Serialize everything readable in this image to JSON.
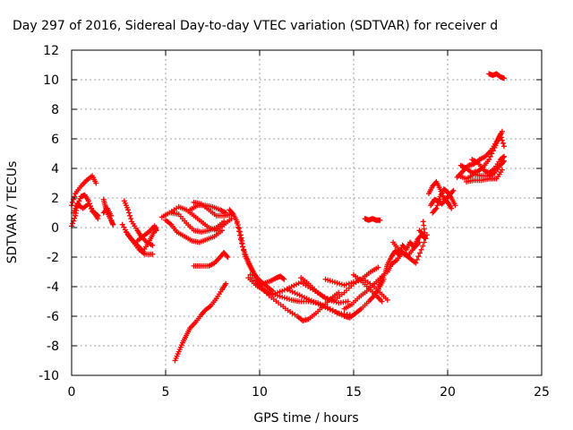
{
  "chart_data": {
    "type": "scatter",
    "title": "Day 297 of 2016, Sidereal Day-to-day VTEC variation (SDTVAR) for receiver d",
    "xlabel": "GPS time / hours",
    "ylabel": "SDTVAR / TECUs",
    "xlim": [
      0,
      25
    ],
    "ylim": [
      -10,
      12
    ],
    "xticks": [
      0,
      5,
      10,
      15,
      20,
      25
    ],
    "yticks": [
      -10,
      -8,
      -6,
      -4,
      -2,
      0,
      2,
      4,
      6,
      8,
      10,
      12
    ],
    "grid": true,
    "marker": "+",
    "color": "#ff0000",
    "traces": [
      [
        [
          0.0,
          1.5
        ],
        [
          0.2,
          2.3
        ],
        [
          0.5,
          2.8
        ],
        [
          0.8,
          3.2
        ],
        [
          1.1,
          3.5
        ],
        [
          1.3,
          3.0
        ]
      ],
      [
        [
          0.0,
          0.1
        ],
        [
          0.2,
          0.8
        ],
        [
          0.3,
          1.5
        ],
        [
          0.5,
          2.1
        ],
        [
          0.7,
          2.2
        ],
        [
          0.9,
          1.8
        ],
        [
          1.1,
          1.1
        ],
        [
          1.3,
          0.9
        ],
        [
          1.4,
          0.8
        ]
      ],
      [
        [
          0.1,
          1.0
        ],
        [
          0.3,
          1.6
        ],
        [
          0.6,
          1.3
        ],
        [
          0.9,
          1.6
        ],
        [
          1.2,
          1.0
        ],
        [
          1.4,
          0.6
        ]
      ],
      [
        [
          1.7,
          1.9
        ],
        [
          1.8,
          1.4
        ],
        [
          1.9,
          1.0
        ],
        [
          2.1,
          0.5
        ],
        [
          2.2,
          0.2
        ]
      ],
      [
        [
          1.7,
          1.0
        ],
        [
          1.9,
          1.3
        ],
        [
          2.1,
          0.8
        ]
      ],
      [
        [
          2.8,
          1.8
        ],
        [
          3.0,
          1.2
        ],
        [
          3.2,
          0.4
        ],
        [
          3.5,
          -0.2
        ],
        [
          3.7,
          -0.6
        ],
        [
          4.0,
          -1.0
        ],
        [
          4.3,
          -1.2
        ]
      ],
      [
        [
          2.7,
          0.2
        ],
        [
          3.0,
          -0.5
        ],
        [
          3.3,
          -1.0
        ],
        [
          3.6,
          -1.5
        ],
        [
          3.9,
          -1.8
        ],
        [
          4.3,
          -1.8
        ]
      ],
      [
        [
          2.9,
          -0.3
        ],
        [
          3.2,
          -0.8
        ],
        [
          3.5,
          -1.2
        ],
        [
          3.8,
          -1.6
        ],
        [
          4.1,
          -1.0
        ],
        [
          4.3,
          -0.5
        ],
        [
          4.5,
          0.0
        ]
      ],
      [
        [
          3.5,
          -0.9
        ],
        [
          3.8,
          -0.6
        ],
        [
          4.1,
          -0.3
        ],
        [
          4.4,
          0.1
        ],
        [
          4.5,
          -0.2
        ]
      ],
      [
        [
          4.8,
          0.7
        ],
        [
          5.2,
          1.0
        ],
        [
          5.7,
          1.4
        ],
        [
          6.1,
          1.2
        ],
        [
          6.5,
          0.8
        ],
        [
          6.9,
          0.4
        ],
        [
          7.3,
          0.0
        ],
        [
          7.7,
          -0.2
        ],
        [
          8.1,
          0.2
        ],
        [
          8.5,
          0.6
        ]
      ],
      [
        [
          5.0,
          0.5
        ],
        [
          5.3,
          0.2
        ],
        [
          5.6,
          -0.3
        ],
        [
          6.0,
          -0.6
        ],
        [
          6.4,
          -0.9
        ],
        [
          6.8,
          -1.0
        ],
        [
          7.2,
          -0.8
        ],
        [
          7.6,
          -0.6
        ],
        [
          8.0,
          -0.2
        ]
      ],
      [
        [
          5.3,
          1.0
        ],
        [
          5.7,
          0.9
        ],
        [
          6.1,
          0.3
        ],
        [
          6.5,
          -0.2
        ],
        [
          6.9,
          -0.3
        ],
        [
          7.3,
          -0.2
        ],
        [
          7.7,
          0.0
        ],
        [
          8.1,
          0.4
        ]
      ],
      [
        [
          6.3,
          1.2
        ],
        [
          6.7,
          1.5
        ],
        [
          7.1,
          1.5
        ],
        [
          7.5,
          1.4
        ],
        [
          7.9,
          1.2
        ],
        [
          8.2,
          1.0
        ]
      ],
      [
        [
          6.5,
          1.7
        ],
        [
          6.9,
          1.6
        ],
        [
          7.3,
          1.2
        ],
        [
          7.7,
          0.8
        ],
        [
          8.1,
          0.8
        ],
        [
          8.5,
          0.9
        ]
      ],
      [
        [
          6.5,
          -2.6
        ],
        [
          6.9,
          -2.6
        ],
        [
          7.3,
          -2.6
        ],
        [
          7.6,
          -2.4
        ],
        [
          7.9,
          -2.0
        ],
        [
          8.1,
          -1.7
        ],
        [
          8.3,
          -2.0
        ]
      ],
      [
        [
          5.5,
          -9.0
        ],
        [
          5.7,
          -8.4
        ],
        [
          5.9,
          -7.8
        ],
        [
          6.1,
          -7.3
        ],
        [
          6.3,
          -6.8
        ],
        [
          6.6,
          -6.4
        ],
        [
          6.9,
          -5.9
        ],
        [
          7.1,
          -5.6
        ],
        [
          7.4,
          -5.3
        ],
        [
          7.7,
          -4.8
        ],
        [
          8.0,
          -4.2
        ],
        [
          8.2,
          -3.8
        ]
      ],
      [
        [
          8.4,
          1.2
        ],
        [
          8.6,
          0.9
        ],
        [
          8.8,
          0.4
        ],
        [
          9.0,
          -0.5
        ],
        [
          9.1,
          -1.3
        ],
        [
          9.3,
          -2.0
        ],
        [
          9.5,
          -2.6
        ],
        [
          9.7,
          -3.1
        ],
        [
          9.9,
          -3.7
        ],
        [
          10.2,
          -4.2
        ],
        [
          10.5,
          -4.5
        ]
      ],
      [
        [
          8.8,
          0.3
        ],
        [
          9.0,
          -0.8
        ],
        [
          9.2,
          -1.8
        ],
        [
          9.4,
          -2.4
        ],
        [
          9.6,
          -2.9
        ],
        [
          9.8,
          -3.3
        ],
        [
          10.1,
          -3.7
        ],
        [
          10.4,
          -4.0
        ],
        [
          10.7,
          -4.3
        ]
      ],
      [
        [
          9.5,
          -3.2
        ],
        [
          9.9,
          -4.0
        ],
        [
          10.3,
          -4.3
        ],
        [
          10.7,
          -4.5
        ],
        [
          11.2,
          -4.7
        ],
        [
          11.7,
          -4.9
        ],
        [
          12.1,
          -5.0
        ],
        [
          12.6,
          -5.0
        ],
        [
          13.1,
          -5.1
        ],
        [
          13.6,
          -5.4
        ],
        [
          14.2,
          -5.8
        ],
        [
          14.8,
          -5.9
        ]
      ],
      [
        [
          9.4,
          -3.4
        ],
        [
          9.8,
          -3.9
        ],
        [
          10.2,
          -3.8
        ],
        [
          10.6,
          -3.6
        ],
        [
          10.9,
          -3.4
        ],
        [
          11.1,
          -3.3
        ],
        [
          11.3,
          -3.5
        ]
      ],
      [
        [
          10.0,
          -4.0
        ],
        [
          10.5,
          -4.6
        ],
        [
          11.0,
          -5.1
        ],
        [
          11.5,
          -5.6
        ],
        [
          12.0,
          -6.0
        ],
        [
          12.3,
          -6.3
        ],
        [
          12.6,
          -6.2
        ],
        [
          13.0,
          -5.8
        ],
        [
          13.4,
          -5.3
        ],
        [
          13.8,
          -4.8
        ],
        [
          14.2,
          -4.4
        ]
      ],
      [
        [
          10.7,
          -4.5
        ],
        [
          11.2,
          -4.3
        ],
        [
          11.7,
          -4.0
        ],
        [
          12.2,
          -3.7
        ],
        [
          12.7,
          -4.1
        ],
        [
          13.2,
          -4.5
        ],
        [
          13.7,
          -4.9
        ],
        [
          14.2,
          -5.1
        ],
        [
          14.7,
          -5.0
        ]
      ],
      [
        [
          11.5,
          -4.2
        ],
        [
          12.0,
          -4.5
        ],
        [
          12.5,
          -4.8
        ],
        [
          13.0,
          -5.1
        ],
        [
          13.5,
          -5.4
        ],
        [
          14.0,
          -5.7
        ],
        [
          14.5,
          -6.0
        ],
        [
          14.8,
          -6.1
        ],
        [
          15.1,
          -5.8
        ],
        [
          15.4,
          -5.5
        ],
        [
          15.8,
          -5.0
        ],
        [
          16.1,
          -4.6
        ],
        [
          16.4,
          -4.0
        ],
        [
          16.6,
          -3.5
        ]
      ],
      [
        [
          12.2,
          -3.4
        ],
        [
          12.6,
          -3.8
        ],
        [
          13.0,
          -4.3
        ],
        [
          13.5,
          -4.8
        ],
        [
          14.0,
          -4.9
        ],
        [
          14.5,
          -4.4
        ],
        [
          15.0,
          -3.8
        ],
        [
          15.5,
          -3.4
        ],
        [
          15.9,
          -3.0
        ],
        [
          16.3,
          -2.7
        ]
      ],
      [
        [
          13.5,
          -3.5
        ],
        [
          14.0,
          -3.7
        ],
        [
          14.5,
          -3.9
        ],
        [
          15.0,
          -3.7
        ],
        [
          15.5,
          -3.5
        ],
        [
          16.0,
          -3.9
        ],
        [
          16.4,
          -4.4
        ],
        [
          16.8,
          -4.9
        ]
      ],
      [
        [
          14.5,
          -5.5
        ],
        [
          14.9,
          -5.2
        ],
        [
          15.3,
          -4.7
        ],
        [
          15.7,
          -4.3
        ],
        [
          16.1,
          -3.8
        ],
        [
          16.5,
          -3.3
        ]
      ],
      [
        [
          15.0,
          -3.2
        ],
        [
          15.4,
          -3.6
        ],
        [
          15.8,
          -4.1
        ],
        [
          16.2,
          -4.6
        ],
        [
          16.5,
          -5.0
        ]
      ],
      [
        [
          15.6,
          0.6
        ],
        [
          15.8,
          0.5
        ],
        [
          16.0,
          0.6
        ],
        [
          16.2,
          0.5
        ],
        [
          16.4,
          0.5
        ]
      ],
      [
        [
          16.3,
          -4.0
        ],
        [
          16.5,
          -3.5
        ],
        [
          16.7,
          -3.0
        ],
        [
          16.8,
          -2.5
        ],
        [
          17.0,
          -2.0
        ],
        [
          17.2,
          -1.6
        ],
        [
          17.4,
          -1.8
        ],
        [
          17.6,
          -1.2
        ],
        [
          17.8,
          -1.5
        ],
        [
          18.0,
          -1.0
        ],
        [
          18.2,
          -1.3
        ],
        [
          18.4,
          -0.8
        ],
        [
          18.6,
          -0.5
        ],
        [
          18.8,
          -0.7
        ]
      ],
      [
        [
          16.8,
          -3.0
        ],
        [
          17.0,
          -2.5
        ],
        [
          17.3,
          -2.2
        ],
        [
          17.6,
          -1.7
        ],
        [
          17.9,
          -1.9
        ],
        [
          18.2,
          -1.4
        ],
        [
          18.5,
          -1.0
        ]
      ],
      [
        [
          17.1,
          -1.0
        ],
        [
          17.4,
          -1.5
        ],
        [
          17.7,
          -1.8
        ],
        [
          18.0,
          -2.1
        ],
        [
          18.3,
          -2.4
        ],
        [
          18.6,
          -1.5
        ],
        [
          18.9,
          -0.5
        ]
      ],
      [
        [
          18.5,
          -0.2
        ],
        [
          18.8,
          -0.6
        ],
        [
          18.7,
          0.4
        ]
      ],
      [
        [
          19.0,
          2.3
        ],
        [
          19.2,
          2.8
        ],
        [
          19.4,
          3.1
        ],
        [
          19.6,
          2.6
        ],
        [
          19.8,
          2.0
        ],
        [
          20.0,
          1.7
        ],
        [
          20.2,
          1.3
        ]
      ],
      [
        [
          19.1,
          1.5
        ],
        [
          19.3,
          1.9
        ],
        [
          19.5,
          1.8
        ],
        [
          19.7,
          1.6
        ],
        [
          19.9,
          1.9
        ],
        [
          20.1,
          2.2
        ],
        [
          20.3,
          2.5
        ]
      ],
      [
        [
          19.2,
          1.0
        ],
        [
          19.4,
          1.3
        ],
        [
          19.6,
          2.1
        ],
        [
          19.8,
          2.6
        ],
        [
          20.0,
          2.4
        ],
        [
          20.2,
          2.0
        ],
        [
          20.4,
          1.5
        ]
      ],
      [
        [
          20.5,
          3.4
        ],
        [
          20.8,
          3.8
        ],
        [
          21.1,
          4.2
        ],
        [
          21.4,
          4.3
        ],
        [
          21.7,
          4.6
        ],
        [
          22.0,
          4.8
        ],
        [
          22.3,
          5.2
        ],
        [
          22.6,
          5.8
        ],
        [
          22.8,
          6.3
        ],
        [
          23.0,
          5.5
        ]
      ],
      [
        [
          20.7,
          4.2
        ],
        [
          21.0,
          4.0
        ],
        [
          21.3,
          3.7
        ],
        [
          21.6,
          3.8
        ],
        [
          21.9,
          4.1
        ],
        [
          22.2,
          4.6
        ],
        [
          22.5,
          5.4
        ],
        [
          22.7,
          6.0
        ],
        [
          22.9,
          6.5
        ]
      ],
      [
        [
          20.6,
          3.5
        ],
        [
          21.0,
          3.3
        ],
        [
          21.4,
          3.6
        ],
        [
          21.8,
          3.5
        ],
        [
          22.2,
          3.5
        ],
        [
          22.5,
          3.7
        ],
        [
          22.8,
          4.2
        ],
        [
          23.0,
          4.5
        ]
      ],
      [
        [
          21.0,
          3.1
        ],
        [
          21.4,
          3.2
        ],
        [
          21.8,
          3.2
        ],
        [
          22.2,
          3.3
        ],
        [
          22.6,
          3.3
        ],
        [
          22.9,
          3.9
        ]
      ],
      [
        [
          21.3,
          4.6
        ],
        [
          21.6,
          4.4
        ],
        [
          21.9,
          3.9
        ],
        [
          22.2,
          3.7
        ],
        [
          22.5,
          4.0
        ],
        [
          22.8,
          4.6
        ],
        [
          23.0,
          4.8
        ]
      ],
      [
        [
          22.2,
          10.4
        ],
        [
          22.4,
          10.3
        ],
        [
          22.6,
          10.4
        ],
        [
          22.8,
          10.2
        ],
        [
          23.0,
          10.1
        ]
      ]
    ]
  }
}
